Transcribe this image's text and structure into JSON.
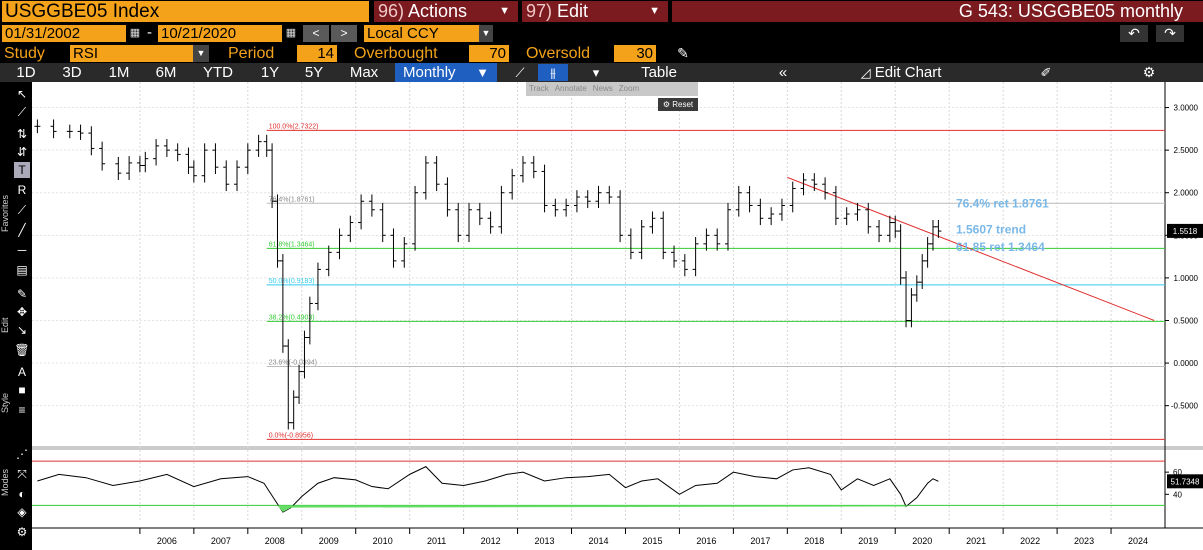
{
  "header": {
    "ticker": "USGGBE05 Index",
    "actions_num": "96)",
    "actions_label": "Actions",
    "edit_num": "97)",
    "edit_label": "Edit",
    "title": "G 543: USGGBE05 monthly"
  },
  "range": {
    "start": "01/31/2002",
    "dash": "-",
    "end": "10/21/2020",
    "currency": "Local CCY"
  },
  "study": {
    "study_label": "Study",
    "study_value": "RSI",
    "period_label": "Period",
    "period_value": "14",
    "overbought_label": "Overbought",
    "overbought_value": "70",
    "oversold_label": "Oversold",
    "oversold_value": "30"
  },
  "tabs": [
    "1D",
    "3D",
    "1M",
    "6M",
    "YTD",
    "1Y",
    "5Y",
    "Max"
  ],
  "toolbar": {
    "frequency": "Monthly",
    "table": "Table",
    "edit_chart": "Edit Chart"
  },
  "mini_toolbar": [
    "Track",
    "Annotate",
    "News",
    "Zoom"
  ],
  "reset_label": "Reset",
  "left_labels": {
    "favorites": "Favorites",
    "edit": "Edit",
    "style": "Style",
    "modes": "Modes"
  },
  "icons": {
    "arrow": "cursor-icon",
    "line": "line-draw-icon",
    "undo": "undo-icon",
    "redo": "redo-icon",
    "settings": "gear-icon"
  },
  "colors": {
    "accent_orange": "#f4a21a",
    "header_red": "#7b1a1f",
    "selected_blue": "#1f5fbf",
    "fib_red": "#e03030",
    "fib_green": "#33cc33",
    "fib_cyan": "#33ccee",
    "fib_gray": "#bbbbbb",
    "annotation_blue": "#7ab8e8"
  },
  "chart_data": {
    "type": "candlestick",
    "x_axis": {
      "labels": [
        "2006",
        "2007",
        "2008",
        "2009",
        "2010",
        "2011",
        "2012",
        "2013",
        "2014",
        "2015",
        "2016",
        "2017",
        "2018",
        "2019",
        "2020",
        "2021",
        "2022",
        "2023",
        "2024"
      ]
    },
    "y_axis": {
      "ticks": [
        3.0,
        2.5,
        2.0,
        1.5,
        1.0,
        0.5,
        0.0,
        -0.5
      ],
      "tick_labels": [
        "3.0000",
        "2.5000",
        "2.0000",
        "1.5000",
        "1.0000",
        "0.5000",
        "0.0000",
        "-0.5000"
      ],
      "range": [
        -0.95,
        3.3
      ]
    },
    "last_price_label": "1.5518",
    "last_price": 1.5518,
    "fib_levels": [
      {
        "label": "100.0%(2.7322)",
        "value": 2.7322,
        "color": "#e03030"
      },
      {
        "label": "76.4%(1.8761)",
        "value": 1.8761,
        "color": "#bbbbbb"
      },
      {
        "label": "61.8%(1.3464)",
        "value": 1.3464,
        "color": "#33cc33"
      },
      {
        "label": "50.0%(0.9183)",
        "value": 0.9183,
        "color": "#33ccee"
      },
      {
        "label": "38.2%(0.4903)",
        "value": 0.4903,
        "color": "#33cc33"
      },
      {
        "label": "23.6%(-0.0394)",
        "value": -0.0394,
        "color": "#bbbbbb"
      },
      {
        "label": "0.0%(-0.8956)",
        "value": -0.8956,
        "color": "#e03030"
      }
    ],
    "annotations": [
      {
        "text": "76.4% ret 1.8761"
      },
      {
        "text": "1.5607 trend"
      },
      {
        "text": "61.85 ret 1.3464"
      }
    ],
    "trendline": {
      "x_start": 2018.0,
      "y_start": 2.18,
      "x_end": 2024.8,
      "y_end": 0.5
    },
    "series": [
      {
        "t": 2004.1,
        "v": 2.78
      },
      {
        "t": 2004.4,
        "v": 2.72
      },
      {
        "t": 2004.7,
        "v": 2.72
      },
      {
        "t": 2004.9,
        "v": 2.7
      },
      {
        "t": 2005.1,
        "v": 2.52
      },
      {
        "t": 2005.3,
        "v": 2.34
      },
      {
        "t": 2005.6,
        "v": 2.23
      },
      {
        "t": 2005.8,
        "v": 2.35
      },
      {
        "t": 2006.0,
        "v": 2.32
      },
      {
        "t": 2006.1,
        "v": 2.4
      },
      {
        "t": 2006.3,
        "v": 2.55
      },
      {
        "t": 2006.5,
        "v": 2.5
      },
      {
        "t": 2006.7,
        "v": 2.45
      },
      {
        "t": 2006.9,
        "v": 2.3
      },
      {
        "t": 2007.0,
        "v": 2.2
      },
      {
        "t": 2007.2,
        "v": 2.5
      },
      {
        "t": 2007.4,
        "v": 2.3
      },
      {
        "t": 2007.6,
        "v": 2.1
      },
      {
        "t": 2007.8,
        "v": 2.3
      },
      {
        "t": 2008.0,
        "v": 2.5
      },
      {
        "t": 2008.2,
        "v": 2.6
      },
      {
        "t": 2008.35,
        "v": 2.5
      },
      {
        "t": 2008.45,
        "v": 1.9
      },
      {
        "t": 2008.55,
        "v": 1.2
      },
      {
        "t": 2008.65,
        "v": 0.2
      },
      {
        "t": 2008.75,
        "v": -0.7
      },
      {
        "t": 2008.85,
        "v": -0.4
      },
      {
        "t": 2008.95,
        "v": -0.1
      },
      {
        "t": 2009.05,
        "v": 0.3
      },
      {
        "t": 2009.15,
        "v": 0.7
      },
      {
        "t": 2009.3,
        "v": 1.1
      },
      {
        "t": 2009.5,
        "v": 1.3
      },
      {
        "t": 2009.7,
        "v": 1.5
      },
      {
        "t": 2009.9,
        "v": 1.65
      },
      {
        "t": 2010.1,
        "v": 1.9
      },
      {
        "t": 2010.3,
        "v": 1.8
      },
      {
        "t": 2010.5,
        "v": 1.5
      },
      {
        "t": 2010.7,
        "v": 1.2
      },
      {
        "t": 2010.9,
        "v": 1.4
      },
      {
        "t": 2011.1,
        "v": 2.0
      },
      {
        "t": 2011.3,
        "v": 2.35
      },
      {
        "t": 2011.5,
        "v": 2.1
      },
      {
        "t": 2011.7,
        "v": 1.8
      },
      {
        "t": 2011.9,
        "v": 1.5
      },
      {
        "t": 2012.1,
        "v": 1.8
      },
      {
        "t": 2012.3,
        "v": 1.7
      },
      {
        "t": 2012.5,
        "v": 1.6
      },
      {
        "t": 2012.7,
        "v": 2.0
      },
      {
        "t": 2012.9,
        "v": 2.2
      },
      {
        "t": 2013.1,
        "v": 2.35
      },
      {
        "t": 2013.3,
        "v": 2.25
      },
      {
        "t": 2013.5,
        "v": 1.85
      },
      {
        "t": 2013.7,
        "v": 1.8
      },
      {
        "t": 2013.9,
        "v": 1.85
      },
      {
        "t": 2014.1,
        "v": 1.95
      },
      {
        "t": 2014.3,
        "v": 1.9
      },
      {
        "t": 2014.5,
        "v": 2.0
      },
      {
        "t": 2014.7,
        "v": 1.95
      },
      {
        "t": 2014.9,
        "v": 1.5
      },
      {
        "t": 2015.1,
        "v": 1.3
      },
      {
        "t": 2015.3,
        "v": 1.6
      },
      {
        "t": 2015.5,
        "v": 1.7
      },
      {
        "t": 2015.7,
        "v": 1.3
      },
      {
        "t": 2015.9,
        "v": 1.2
      },
      {
        "t": 2016.1,
        "v": 1.1
      },
      {
        "t": 2016.3,
        "v": 1.4
      },
      {
        "t": 2016.5,
        "v": 1.5
      },
      {
        "t": 2016.7,
        "v": 1.4
      },
      {
        "t": 2016.9,
        "v": 1.8
      },
      {
        "t": 2017.1,
        "v": 2.0
      },
      {
        "t": 2017.3,
        "v": 1.85
      },
      {
        "t": 2017.5,
        "v": 1.7
      },
      {
        "t": 2017.7,
        "v": 1.75
      },
      {
        "t": 2017.9,
        "v": 1.85
      },
      {
        "t": 2018.1,
        "v": 2.05
      },
      {
        "t": 2018.3,
        "v": 2.15
      },
      {
        "t": 2018.5,
        "v": 2.1
      },
      {
        "t": 2018.7,
        "v": 2.0
      },
      {
        "t": 2018.9,
        "v": 1.7
      },
      {
        "t": 2019.1,
        "v": 1.75
      },
      {
        "t": 2019.3,
        "v": 1.8
      },
      {
        "t": 2019.5,
        "v": 1.6
      },
      {
        "t": 2019.7,
        "v": 1.5
      },
      {
        "t": 2019.9,
        "v": 1.65
      },
      {
        "t": 2020.0,
        "v": 1.55
      },
      {
        "t": 2020.1,
        "v": 1.0
      },
      {
        "t": 2020.2,
        "v": 0.5
      },
      {
        "t": 2020.3,
        "v": 0.8
      },
      {
        "t": 2020.4,
        "v": 0.95
      },
      {
        "t": 2020.5,
        "v": 1.2
      },
      {
        "t": 2020.6,
        "v": 1.4
      },
      {
        "t": 2020.7,
        "v": 1.6
      },
      {
        "t": 2020.8,
        "v": 1.55
      }
    ],
    "rsi": {
      "ticks": [
        60,
        40
      ],
      "overbought": 70,
      "oversold": 30,
      "last_label": "51.7348",
      "last": 51.7348,
      "series": [
        {
          "t": 2004.1,
          "v": 52
        },
        {
          "t": 2004.5,
          "v": 58
        },
        {
          "t": 2005.0,
          "v": 55
        },
        {
          "t": 2005.5,
          "v": 48
        },
        {
          "t": 2006.0,
          "v": 52
        },
        {
          "t": 2006.5,
          "v": 58
        },
        {
          "t": 2007.0,
          "v": 47
        },
        {
          "t": 2007.5,
          "v": 54
        },
        {
          "t": 2008.0,
          "v": 56
        },
        {
          "t": 2008.3,
          "v": 50
        },
        {
          "t": 2008.5,
          "v": 35
        },
        {
          "t": 2008.65,
          "v": 24
        },
        {
          "t": 2008.8,
          "v": 28
        },
        {
          "t": 2009.0,
          "v": 38
        },
        {
          "t": 2009.3,
          "v": 50
        },
        {
          "t": 2009.6,
          "v": 55
        },
        {
          "t": 2010.0,
          "v": 53
        },
        {
          "t": 2010.3,
          "v": 47
        },
        {
          "t": 2010.6,
          "v": 45
        },
        {
          "t": 2011.0,
          "v": 58
        },
        {
          "t": 2011.3,
          "v": 65
        },
        {
          "t": 2011.6,
          "v": 50
        },
        {
          "t": 2012.0,
          "v": 48
        },
        {
          "t": 2012.4,
          "v": 52
        },
        {
          "t": 2012.8,
          "v": 58
        },
        {
          "t": 2013.1,
          "v": 60
        },
        {
          "t": 2013.5,
          "v": 52
        },
        {
          "t": 2013.9,
          "v": 55
        },
        {
          "t": 2014.3,
          "v": 56
        },
        {
          "t": 2014.7,
          "v": 58
        },
        {
          "t": 2015.0,
          "v": 46
        },
        {
          "t": 2015.3,
          "v": 52
        },
        {
          "t": 2015.6,
          "v": 54
        },
        {
          "t": 2016.0,
          "v": 40
        },
        {
          "t": 2016.3,
          "v": 48
        },
        {
          "t": 2016.7,
          "v": 50
        },
        {
          "t": 2017.0,
          "v": 60
        },
        {
          "t": 2017.4,
          "v": 56
        },
        {
          "t": 2017.8,
          "v": 54
        },
        {
          "t": 2018.1,
          "v": 62
        },
        {
          "t": 2018.4,
          "v": 64
        },
        {
          "t": 2018.8,
          "v": 58
        },
        {
          "t": 2019.0,
          "v": 44
        },
        {
          "t": 2019.3,
          "v": 54
        },
        {
          "t": 2019.6,
          "v": 48
        },
        {
          "t": 2019.9,
          "v": 54
        },
        {
          "t": 2020.1,
          "v": 40
        },
        {
          "t": 2020.2,
          "v": 29
        },
        {
          "t": 2020.4,
          "v": 37
        },
        {
          "t": 2020.6,
          "v": 50
        },
        {
          "t": 2020.7,
          "v": 54
        },
        {
          "t": 2020.8,
          "v": 51.7
        }
      ]
    }
  }
}
